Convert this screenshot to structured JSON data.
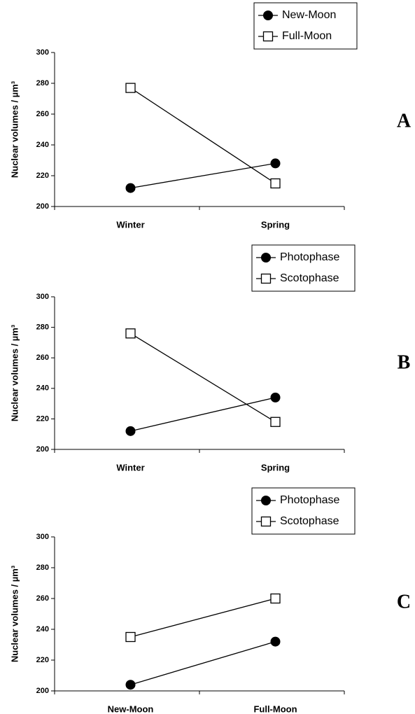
{
  "chart_data": [
    {
      "type": "line",
      "panel": "A",
      "ylabel": "Nuclear volumes / µm³",
      "categories": [
        "Winter",
        "Spring"
      ],
      "series": [
        {
          "name": "New-Moon",
          "color": "#000000",
          "marker": "circle",
          "values": [
            212,
            228
          ]
        },
        {
          "name": "Full-Moon",
          "color": "#000000",
          "marker": "square",
          "values": [
            277,
            215
          ]
        }
      ],
      "ylim": [
        200,
        300
      ],
      "yticks": [
        200,
        220,
        240,
        260,
        280,
        300
      ],
      "legend": "top-right"
    },
    {
      "type": "line",
      "panel": "B",
      "ylabel": "Nuclear volumes / µm³",
      "categories": [
        "Winter",
        "Spring"
      ],
      "series": [
        {
          "name": "Photophase",
          "color": "#000000",
          "marker": "circle",
          "values": [
            212,
            234
          ]
        },
        {
          "name": "Scotophase",
          "color": "#000000",
          "marker": "square",
          "values": [
            276,
            218
          ]
        }
      ],
      "ylim": [
        200,
        300
      ],
      "yticks": [
        200,
        220,
        240,
        260,
        280,
        300
      ],
      "legend": "top-right"
    },
    {
      "type": "line",
      "panel": "C",
      "ylabel": "Nuclear volumes / µm³",
      "categories": [
        "New-Moon",
        "Full-Moon"
      ],
      "series": [
        {
          "name": "Photophase",
          "color": "#000000",
          "marker": "circle",
          "values": [
            204,
            232
          ]
        },
        {
          "name": "Scotophase",
          "color": "#000000",
          "marker": "square",
          "values": [
            235,
            260
          ]
        }
      ],
      "ylim": [
        200,
        300
      ],
      "yticks": [
        200,
        220,
        240,
        260,
        280,
        300
      ],
      "legend": "top-right"
    }
  ]
}
